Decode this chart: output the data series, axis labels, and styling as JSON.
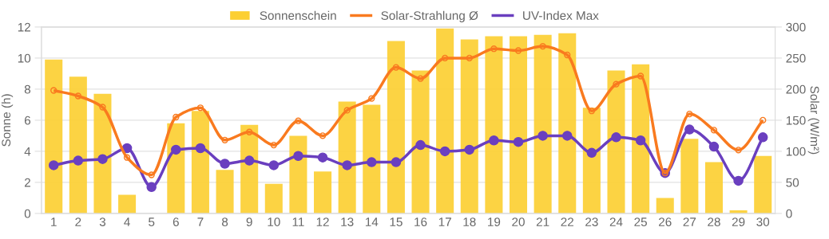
{
  "chart_data": {
    "type": "bar",
    "ylabel": "Sonne (h)",
    "y2label": "Solar (W/m²)",
    "categories": [
      "1",
      "2",
      "3",
      "4",
      "5",
      "6",
      "7",
      "8",
      "9",
      "10",
      "11",
      "12",
      "13",
      "14",
      "15",
      "16",
      "17",
      "18",
      "19",
      "20",
      "21",
      "22",
      "23",
      "24",
      "25",
      "26",
      "27",
      "28",
      "29",
      "30"
    ],
    "series": [
      {
        "name": "Sonnenschein",
        "color": "#fccf33",
        "values": [
          9.9,
          8.8,
          7.7,
          1.2,
          0,
          5.8,
          6.6,
          2.8,
          5.7,
          1.9,
          5.0,
          2.7,
          7.2,
          7.0,
          11.1,
          9.2,
          11.9,
          11.2,
          11.4,
          11.4,
          11.5,
          11.6,
          6.8,
          9.2,
          9.6,
          1.0,
          4.8,
          3.3,
          0.2,
          3.7
        ]
      },
      {
        "name": "Solar-Strahlung Ø",
        "type": "line",
        "axis": "y2",
        "color": "#f97a1f",
        "marker": "circle",
        "values": [
          198,
          189,
          171,
          90,
          62,
          155,
          170,
          118,
          131,
          110,
          149,
          125,
          166,
          185,
          235,
          217,
          250,
          250,
          265,
          262,
          269,
          255,
          165,
          208,
          221,
          65,
          160,
          134,
          102,
          150
        ]
      },
      {
        "name": "UV-Index Max",
        "type": "line",
        "color": "#6a3fbf",
        "marker": "circle",
        "values": [
          3.1,
          3.4,
          3.5,
          4.2,
          1.7,
          4.1,
          4.2,
          3.2,
          3.4,
          3.1,
          3.7,
          3.6,
          3.1,
          3.3,
          3.3,
          4.4,
          4.0,
          4.1,
          4.7,
          4.6,
          5.0,
          5.0,
          3.9,
          4.9,
          4.7,
          2.6,
          5.4,
          4.3,
          2.1,
          4.9
        ]
      }
    ],
    "ylim": [
      0,
      12
    ],
    "yticks": [
      0,
      2,
      4,
      6,
      8,
      10,
      12
    ],
    "y2lim": [
      0,
      300
    ],
    "y2ticks": [
      0,
      50,
      100,
      150,
      200,
      250,
      300
    ],
    "grid": true,
    "legend": "top"
  }
}
